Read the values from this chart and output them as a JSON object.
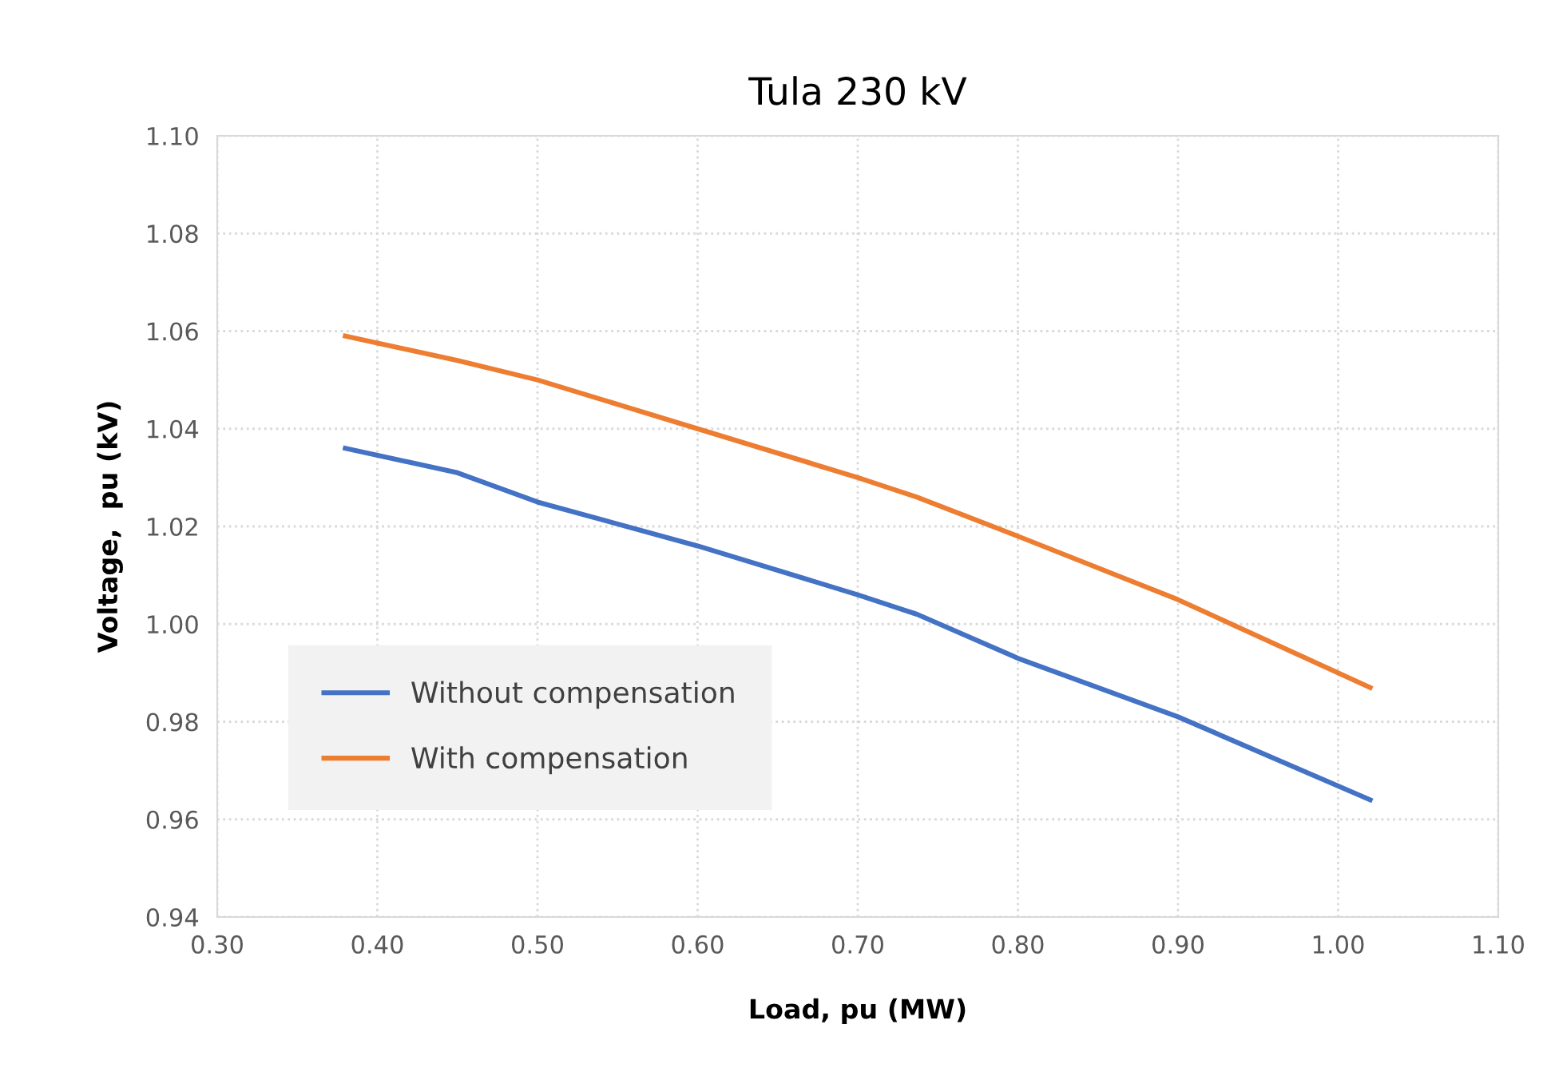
{
  "chart_data": {
    "type": "line",
    "title": "Tula 230 kV",
    "xlabel": "Load, pu (MW)",
    "ylabel": "Voltage,  pu (kV)",
    "series": [
      {
        "name": "Without compensation",
        "color": "#4472c4",
        "x": [
          0.38,
          0.45,
          0.5,
          0.6,
          0.7,
          0.737,
          0.8,
          0.9,
          1.02
        ],
        "values": [
          1.036,
          1.031,
          1.025,
          1.016,
          1.006,
          1.002,
          0.993,
          0.981,
          0.964
        ]
      },
      {
        "name": "With compensation",
        "color": "#ed7d31",
        "x": [
          0.38,
          0.45,
          0.5,
          0.6,
          0.7,
          0.737,
          0.8,
          0.9,
          1.02
        ],
        "values": [
          1.059,
          1.054,
          1.05,
          1.04,
          1.03,
          1.026,
          1.018,
          1.005,
          0.987
        ]
      }
    ],
    "xlim": [
      0.3,
      1.1
    ],
    "xticks": [
      {
        "value": 0.3,
        "label": "0.30"
      },
      {
        "value": 0.4,
        "label": "0.40"
      },
      {
        "value": 0.5,
        "label": "0.50"
      },
      {
        "value": 0.6,
        "label": "0.60"
      },
      {
        "value": 0.7,
        "label": "0.70"
      },
      {
        "value": 0.8,
        "label": "0.80"
      },
      {
        "value": 0.9,
        "label": "0.90"
      },
      {
        "value": 1.0,
        "label": "1.00"
      },
      {
        "value": 1.1,
        "label": "1.10"
      }
    ],
    "ylim": [
      0.94,
      1.1
    ],
    "yticks": [
      {
        "value": 0.94,
        "label": "0.94"
      },
      {
        "value": 0.96,
        "label": "0.96"
      },
      {
        "value": 0.98,
        "label": "0.98"
      },
      {
        "value": 1.0,
        "label": "1.00"
      },
      {
        "value": 1.02,
        "label": "1.02"
      },
      {
        "value": 1.04,
        "label": "1.04"
      },
      {
        "value": 1.06,
        "label": "1.06"
      },
      {
        "value": 1.08,
        "label": "1.08"
      },
      {
        "value": 1.1,
        "label": "1.10"
      }
    ],
    "grid": true,
    "legend": "bottom left",
    "marker": "none",
    "line_style": "solid"
  }
}
